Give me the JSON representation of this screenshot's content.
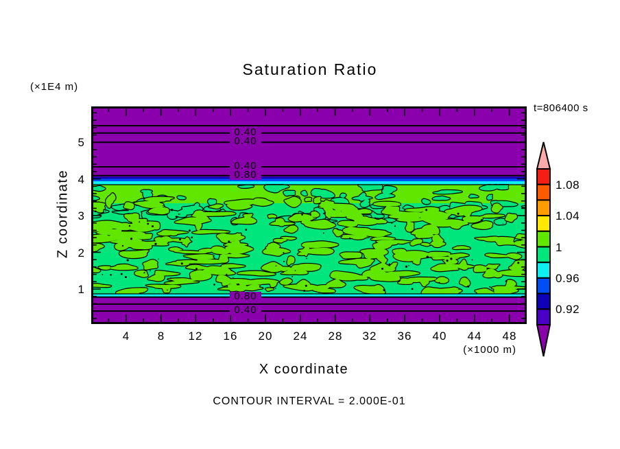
{
  "title": "Saturation Ratio",
  "time_label": "t=806400 s",
  "footer": "CONTOUR INTERVAL = 2.000E-01",
  "y_axis": {
    "label": "Z coordinate",
    "unit": "(×1E4 m)",
    "ticks": [
      "1",
      "2",
      "3",
      "4",
      "5"
    ]
  },
  "x_axis": {
    "label": "X coordinate",
    "unit": "(×1000 m)",
    "ticks": [
      "4",
      "8",
      "12",
      "16",
      "20",
      "24",
      "28",
      "32",
      "36",
      "40",
      "44",
      "48"
    ]
  },
  "palette": {
    "purple": "#8B00AD",
    "indigo": "#4B00C8",
    "navy": "#0F00B9",
    "blue": "#004FF5",
    "cyan": "#0FEFEF",
    "springgreen": "#00E67D",
    "chartreuse": "#61E600",
    "yellow": "#FFE800",
    "orange": "#FF9C00",
    "orangered": "#FF5A00",
    "red": "#F51E14",
    "pink": "#FFAAAA",
    "black": "#000000",
    "white": "#FFFFFF"
  },
  "chart_data": {
    "type": "filled_contour",
    "title": "Saturation Ratio",
    "time_stamp": "t=806400 s",
    "xlabel": "X coordinate",
    "x_unit": "(×1000 m)",
    "xlim": [
      0,
      50
    ],
    "x_ticks": [
      4,
      8,
      12,
      16,
      20,
      24,
      28,
      32,
      36,
      40,
      44,
      48
    ],
    "ylabel": "Z coordinate",
    "y_unit": "(×1E4 m)",
    "ylim": [
      0,
      5.95
    ],
    "y_ticks": [
      1,
      2,
      3,
      4,
      5
    ],
    "contour_interval": 0.2,
    "contour_interval_label": "CONTOUR INTERVAL = 2.000E-01",
    "line_contours": [
      {
        "z": 5.45,
        "label": null
      },
      {
        "z": 5.25,
        "label": "0.40"
      },
      {
        "z": 5.0,
        "label": "0.40"
      },
      {
        "z": 4.33,
        "label": "0.40"
      },
      {
        "z": 4.09,
        "label": "0.80"
      },
      {
        "z": 0.78,
        "label": "0.80"
      },
      {
        "z": 0.59,
        "label": null
      },
      {
        "z": 0.4,
        "label": "0.40"
      }
    ],
    "colorbar": {
      "levels": [
        0.9,
        0.92,
        0.94,
        0.96,
        0.98,
        1.0,
        1.02,
        1.04,
        1.06,
        1.08,
        1.1
      ],
      "labels": [
        "1.08",
        "1.04",
        "1",
        "0.96",
        "0.92"
      ],
      "colors_top_to_bottom": [
        "#F51E14",
        "#FF5A00",
        "#FF9C00",
        "#FFE800",
        "#61E600",
        "#00E67D",
        "#0FEFEF",
        "#004FF5",
        "#0F00B9",
        "#4B00C8"
      ],
      "over_arrow_color": "#FFAAAA",
      "under_arrow_color": "#8B00AD"
    },
    "field_description": {
      "background_regions": "saturation ratio < 0.90 (purple) above z≈3.9 and below z≈0.95",
      "cloud_layer": "turbulent band z≈0.95–3.8 with ratio ≈0.96–1.02 (spring green / chartreuse mix)",
      "upper_band": "continuous chartreuse band z≈3.35–3.8 (ratio ≈1.00–1.02)",
      "transition_stripes": "thin navy/blue/cyan gradient stripes at cloud top and cyan stripe at cloud base"
    }
  }
}
